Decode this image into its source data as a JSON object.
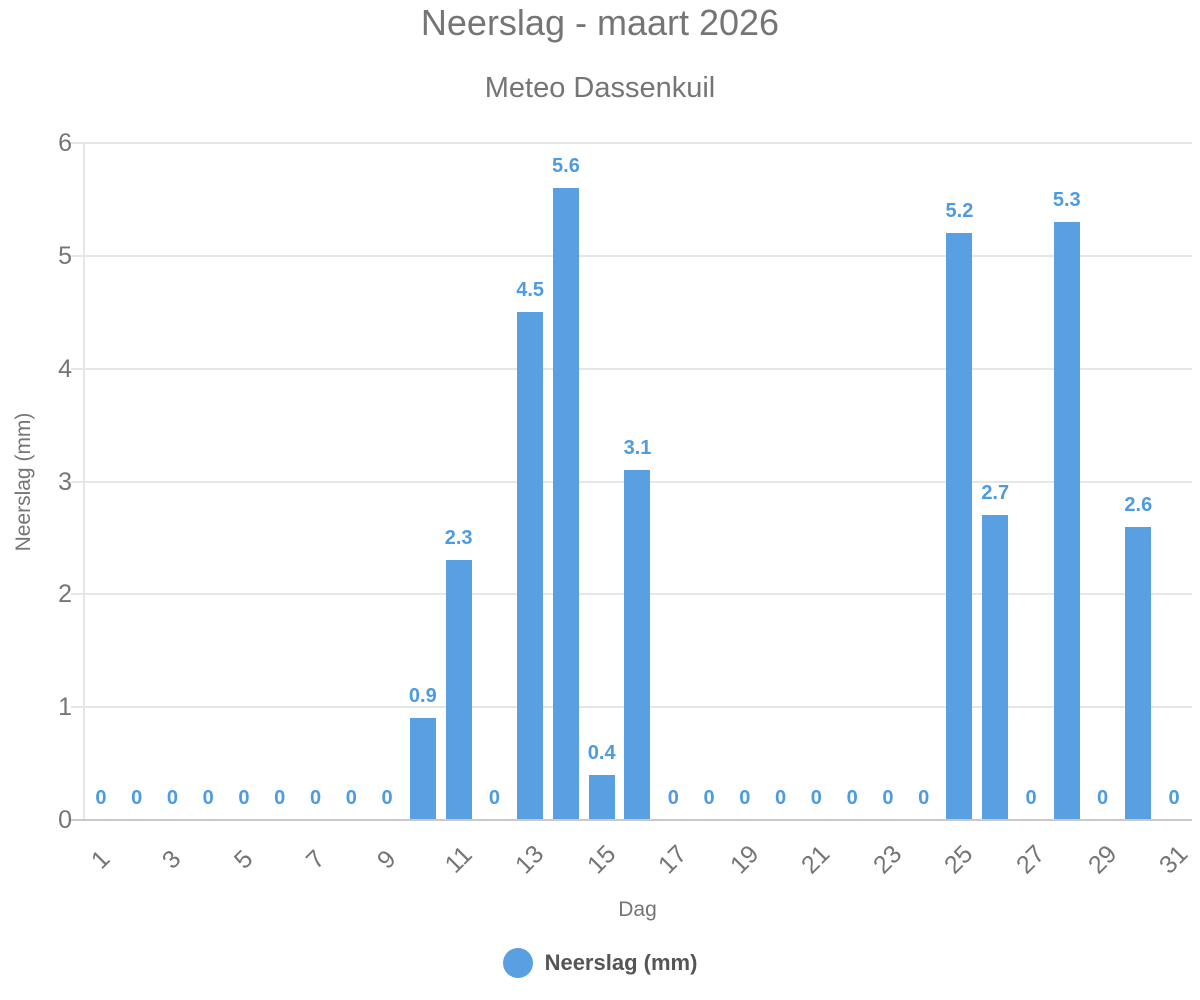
{
  "page": {
    "background": "#ffffff"
  },
  "header": {
    "title": "Neerslag - maart 2026",
    "subtitle": "Meteo Dassenkuil"
  },
  "axes": {
    "x_title": "Dag",
    "y_title": "Neerslag (mm)"
  },
  "legend": {
    "label": "Neerslag (mm)",
    "marker": "circle-icon"
  },
  "colors": {
    "bar": "#58a0e2",
    "value_label": "#4d9be1",
    "heading": "#757575",
    "axis_text": "#757575",
    "legend_text": "#555555",
    "gridline": "#e6e6e6",
    "baseline": "#c9c9c9",
    "background": "#ffffff"
  },
  "chart_data": {
    "type": "bar",
    "title": "Neerslag - maart 2026",
    "subtitle": "Meteo Dassenkuil",
    "xlabel": "Dag",
    "ylabel": "Neerslag (mm)",
    "ylim": [
      0,
      6
    ],
    "yticks": [
      0,
      1,
      2,
      3,
      4,
      5,
      6
    ],
    "xtick_labels": [
      1,
      3,
      5,
      7,
      9,
      11,
      13,
      15,
      17,
      19,
      21,
      23,
      25,
      27,
      29,
      31
    ],
    "grid": true,
    "legend_position": "bottom",
    "series_name": "Neerslag (mm)",
    "data_labels_shown": true,
    "categories": [
      1,
      2,
      3,
      4,
      5,
      6,
      7,
      8,
      9,
      10,
      11,
      12,
      13,
      14,
      15,
      16,
      17,
      18,
      19,
      20,
      21,
      22,
      23,
      24,
      25,
      26,
      27,
      28,
      29,
      30,
      31
    ],
    "values": [
      0,
      0,
      0,
      0,
      0,
      0,
      0,
      0,
      0,
      0.9,
      2.3,
      0,
      4.5,
      5.6,
      0.4,
      3.1,
      0,
      0,
      0,
      0,
      0,
      0,
      0,
      0,
      5.2,
      2.7,
      0,
      5.3,
      0,
      2.6,
      0
    ]
  }
}
